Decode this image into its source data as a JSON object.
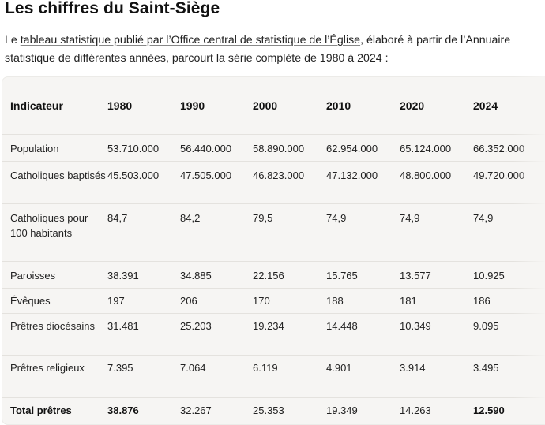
{
  "heading": "Les chiffres du Saint-Siège",
  "intro": {
    "before": "Le ",
    "link": "tableau statistique publié par l’Office central de statistique de l’Église",
    "after": ", élaboré à partir de l’Annuaire statistique de différentes années, parcourt la série complète de 1980 à 2024 :"
  },
  "table": {
    "headers": [
      "Indicateur",
      "1980",
      "1990",
      "2000",
      "2010",
      "2020",
      "2024"
    ],
    "rows": [
      {
        "label": "Population",
        "values": [
          "53.710.000",
          "56.440.000",
          "58.890.000",
          "62.954.000",
          "65.124.000",
          "66.352.000"
        ]
      },
      {
        "label": "Catholiques baptisés",
        "values": [
          "45.503.000",
          "47.505.000",
          "46.823.000",
          "47.132.000",
          "48.800.000",
          "49.720.000"
        ]
      },
      {
        "label": "Catholiques pour 100 habitants",
        "values": [
          "84,7",
          "84,2",
          "79,5",
          "74,9",
          "74,9",
          "74,9"
        ]
      },
      {
        "label": "Paroisses",
        "values": [
          "38.391",
          "34.885",
          "22.156",
          "15.765",
          "13.577",
          "10.925"
        ]
      },
      {
        "label": "Évêques",
        "values": [
          "197",
          "206",
          "170",
          "188",
          "181",
          "186"
        ]
      },
      {
        "label": "Prêtres diocésains",
        "values": [
          "31.481",
          "25.203",
          "19.234",
          "14.448",
          "10.349",
          "9.095"
        ]
      },
      {
        "label": "Prêtres religieux",
        "values": [
          "7.395",
          "7.064",
          "6.119",
          "4.901",
          "3.914",
          "3.495"
        ]
      },
      {
        "label": "Total prêtres",
        "values": [
          "38.876",
          "32.267",
          "25.353",
          "19.349",
          "14.263",
          "12.590"
        ]
      }
    ]
  }
}
